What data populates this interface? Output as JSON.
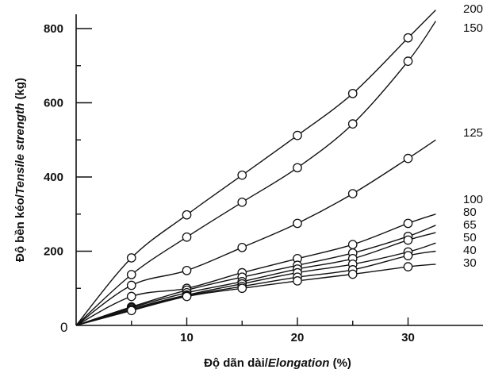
{
  "chart_data": {
    "type": "line",
    "xlabel_plain": "Độ dãn dài/",
    "xlabel_italic": "Elongation",
    "xlabel_tail": " (%)",
    "ylabel_plain": "Độ bền kéo/",
    "ylabel_italic": "Tensile strength",
    "ylabel_tail": " (kg)",
    "origin_label": "0",
    "xlim": [
      0,
      35
    ],
    "ylim": [
      0,
      850
    ],
    "x_ticks": [
      10,
      20,
      30
    ],
    "x_minor_ticks": [
      5,
      15,
      25
    ],
    "y_ticks": [
      200,
      400,
      600,
      800
    ],
    "y_minor_ticks": [
      100,
      300,
      500,
      700
    ],
    "grid": false,
    "legend": "series labels at right end of curves",
    "series": [
      {
        "name": "200",
        "x": [
          5,
          10,
          15,
          20,
          25,
          30
        ],
        "values": [
          182,
          298,
          405,
          512,
          625,
          775
        ],
        "end": [
          32.5,
          850
        ]
      },
      {
        "name": "150",
        "x": [
          5,
          10,
          15,
          20,
          25,
          30
        ],
        "values": [
          137,
          238,
          332,
          425,
          543,
          712
        ],
        "end": [
          32.5,
          820
        ]
      },
      {
        "name": "125",
        "x": [
          5,
          10,
          15,
          20,
          25,
          30
        ],
        "values": [
          108,
          148,
          210,
          275,
          355,
          450
        ],
        "end": [
          32.5,
          500
        ]
      },
      {
        "name": "100",
        "x": [
          5,
          10,
          15,
          20,
          25,
          30
        ],
        "values": [
          78,
          100,
          142,
          180,
          218,
          275
        ],
        "end": [
          32.5,
          300
        ]
      },
      {
        "name": "80",
        "x": [
          5,
          10,
          15,
          20,
          25,
          30
        ],
        "values": [
          50,
          95,
          130,
          162,
          195,
          240
        ],
        "end": [
          32.5,
          270
        ]
      },
      {
        "name": "65",
        "x": [
          5,
          10,
          15,
          20,
          25,
          30
        ],
        "values": [
          48,
          88,
          118,
          152,
          180,
          230
        ],
        "end": [
          32.5,
          250
        ]
      },
      {
        "name": "50",
        "x": [
          5,
          10,
          15,
          20,
          25,
          30
        ],
        "values": [
          45,
          82,
          112,
          142,
          165,
          198
        ],
        "end": [
          32.5,
          222
        ]
      },
      {
        "name": "40",
        "x": [
          5,
          10,
          15,
          20,
          25,
          30
        ],
        "values": [
          42,
          80,
          105,
          130,
          150,
          188
        ],
        "end": [
          32.5,
          200
        ]
      },
      {
        "name": "30",
        "x": [
          5,
          10,
          15,
          20,
          25,
          30
        ],
        "values": [
          40,
          78,
          100,
          120,
          138,
          158
        ],
        "end": [
          32.5,
          165
        ]
      }
    ]
  }
}
